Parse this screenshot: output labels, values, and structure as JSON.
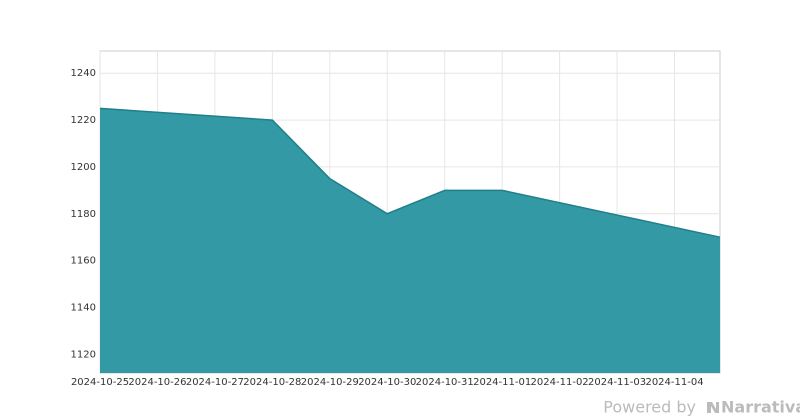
{
  "chart_data": {
    "type": "area",
    "x": [
      "2024-10-25",
      "2024-10-28",
      "2024-10-29",
      "2024-10-30",
      "2024-10-31",
      "2024-11-01",
      "2024-11-04T19:00"
    ],
    "values": [
      1225,
      1220,
      1195,
      1180,
      1190,
      1190,
      1170
    ],
    "color": "#3399a5",
    "line_color": "#1f7f8a",
    "xlim": [
      "2024-10-25",
      "2024-11-04T19:00"
    ],
    "xticks": [
      "2024-10-25",
      "2024-10-26",
      "2024-10-27",
      "2024-10-28",
      "2024-10-29",
      "2024-10-30",
      "2024-10-31",
      "2024-11-01",
      "2024-11-02",
      "2024-11-03",
      "2024-11-04"
    ],
    "ylim": [
      1112,
      1249.5
    ],
    "yticks": [
      1120,
      1140,
      1160,
      1180,
      1200,
      1220,
      1240
    ],
    "grid": true
  },
  "footer": {
    "powered": "Powered by",
    "brand": "Narrativa"
  }
}
